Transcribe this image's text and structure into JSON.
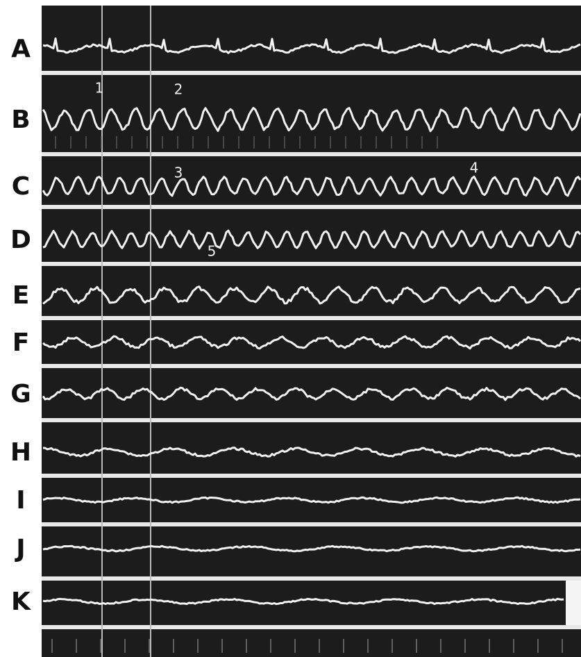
{
  "rows": [
    {
      "label": "A"
    },
    {
      "label": "B"
    },
    {
      "label": "C"
    },
    {
      "label": "D"
    },
    {
      "label": "E"
    },
    {
      "label": "F"
    },
    {
      "label": "G"
    },
    {
      "label": "H"
    },
    {
      "label": "I"
    },
    {
      "label": "J"
    },
    {
      "label": "K"
    }
  ],
  "annotations": [
    {
      "text": "1"
    },
    {
      "text": "2"
    },
    {
      "text": "3"
    },
    {
      "text": "4"
    },
    {
      "text": "5"
    }
  ]
}
